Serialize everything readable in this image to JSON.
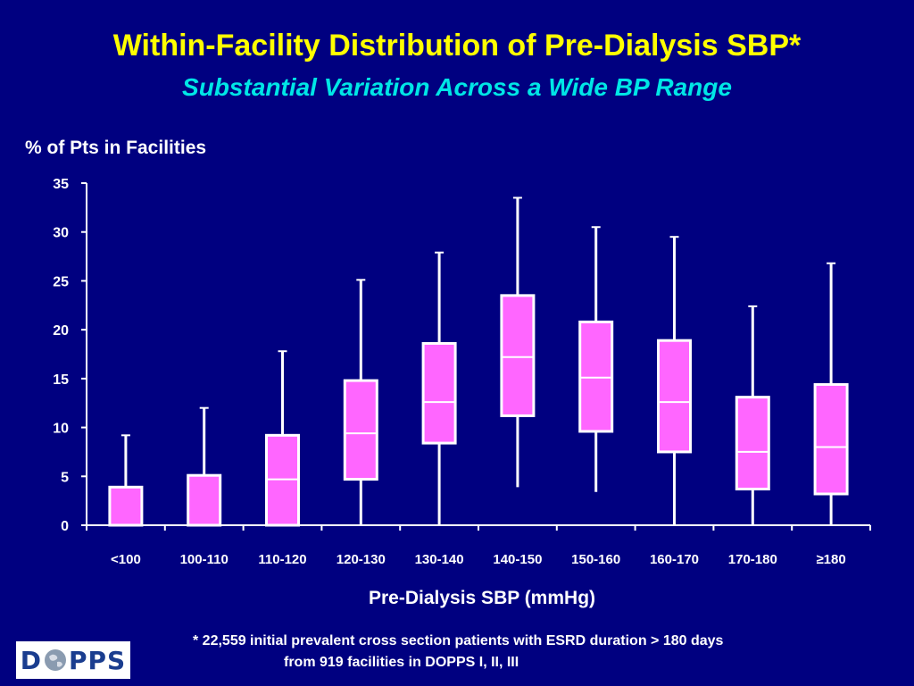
{
  "slide": {
    "title": "Within-Facility Distribution of Pre-Dialysis SBP*",
    "subtitle": "Substantial Variation Across a Wide BP Range",
    "footnote_line1": "* 22,559 initial prevalent cross section patients with ESRD duration > 180 days",
    "footnote_line2": "from 919 facilities in DOPPS I, II, III",
    "logo_text": "DOPPS",
    "colors": {
      "background": "#000080",
      "title": "#FFFF00",
      "subtitle": "#00E6E6",
      "box_fill": "#FF66FF",
      "lines": "#FFFFFF"
    }
  },
  "chart_data": {
    "type": "boxplot",
    "title": "Within-Facility Distribution of Pre-Dialysis SBP*",
    "ylabel": "% of Pts in Facilities",
    "xlabel": "Pre-Dialysis SBP (mmHg)",
    "ylim": [
      0,
      35
    ],
    "yticks": [
      0,
      5,
      10,
      15,
      20,
      25,
      30,
      35
    ],
    "grid": false,
    "categories": [
      "<100",
      "100-110",
      "110-120",
      "120-130",
      "130-140",
      "140-150",
      "150-160",
      "160-170",
      "170-180",
      "≥180"
    ],
    "boxes": [
      {
        "min": 0,
        "q1": 0,
        "median": 0,
        "q3": 3.9,
        "max": 9.2
      },
      {
        "min": 0,
        "q1": 0,
        "median": 0,
        "q3": 5.1,
        "max": 12.0
      },
      {
        "min": 0,
        "q1": 0,
        "median": 4.7,
        "q3": 9.2,
        "max": 17.8
      },
      {
        "min": 0,
        "q1": 4.7,
        "median": 9.4,
        "q3": 14.8,
        "max": 25.1
      },
      {
        "min": 0,
        "q1": 8.4,
        "median": 12.6,
        "q3": 18.6,
        "max": 27.9
      },
      {
        "min": 3.9,
        "q1": 11.2,
        "median": 17.2,
        "q3": 23.5,
        "max": 33.5
      },
      {
        "min": 3.4,
        "q1": 9.6,
        "median": 15.1,
        "q3": 20.8,
        "max": 30.5
      },
      {
        "min": 0,
        "q1": 7.5,
        "median": 12.6,
        "q3": 18.9,
        "max": 29.5
      },
      {
        "min": 0,
        "q1": 3.7,
        "median": 7.5,
        "q3": 13.1,
        "max": 22.4
      },
      {
        "min": 0,
        "q1": 3.2,
        "median": 8.0,
        "q3": 14.4,
        "max": 26.8
      }
    ]
  }
}
